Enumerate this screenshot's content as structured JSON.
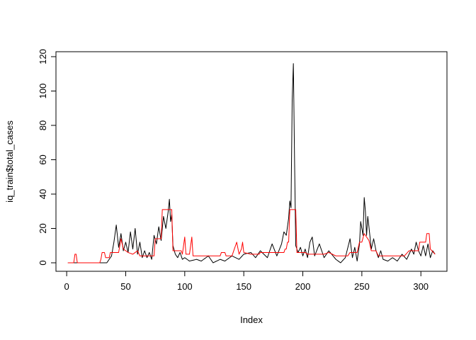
{
  "chart_data": {
    "type": "line",
    "xlabel": "Index",
    "ylabel": "iq_train$total_cases",
    "xlim": [
      1,
      312
    ],
    "ylim": [
      0,
      120
    ],
    "xticks": [
      0,
      50,
      100,
      150,
      200,
      250,
      300
    ],
    "yticks": [
      0,
      20,
      40,
      60,
      80,
      100,
      120
    ],
    "grid": false,
    "series": [
      {
        "color": "#000000",
        "knots": [
          [
            1,
            0
          ],
          [
            10,
            0
          ],
          [
            28,
            0
          ],
          [
            34,
            0
          ],
          [
            38,
            4
          ],
          [
            40,
            12
          ],
          [
            42,
            22
          ],
          [
            44,
            9
          ],
          [
            46,
            17
          ],
          [
            48,
            7
          ],
          [
            50,
            12
          ],
          [
            52,
            6
          ],
          [
            54,
            18
          ],
          [
            56,
            8
          ],
          [
            58,
            20
          ],
          [
            60,
            5
          ],
          [
            62,
            12
          ],
          [
            64,
            3
          ],
          [
            66,
            7
          ],
          [
            68,
            3
          ],
          [
            70,
            6
          ],
          [
            72,
            2
          ],
          [
            74,
            16
          ],
          [
            76,
            11
          ],
          [
            78,
            21
          ],
          [
            80,
            13
          ],
          [
            82,
            27
          ],
          [
            84,
            20
          ],
          [
            86,
            30
          ],
          [
            87,
            37
          ],
          [
            88,
            24
          ],
          [
            89,
            28
          ],
          [
            90,
            10
          ],
          [
            92,
            5
          ],
          [
            94,
            3
          ],
          [
            96,
            6
          ],
          [
            98,
            2
          ],
          [
            100,
            3
          ],
          [
            104,
            1
          ],
          [
            110,
            2
          ],
          [
            114,
            1
          ],
          [
            120,
            4
          ],
          [
            124,
            0
          ],
          [
            130,
            2
          ],
          [
            134,
            1
          ],
          [
            140,
            4
          ],
          [
            146,
            2
          ],
          [
            150,
            5
          ],
          [
            156,
            6
          ],
          [
            160,
            3
          ],
          [
            164,
            7
          ],
          [
            170,
            3
          ],
          [
            174,
            11
          ],
          [
            178,
            4
          ],
          [
            182,
            11
          ],
          [
            184,
            18
          ],
          [
            186,
            16
          ],
          [
            188,
            26
          ],
          [
            189,
            36
          ],
          [
            190,
            32
          ],
          [
            191,
            95
          ],
          [
            192,
            116
          ],
          [
            193,
            60
          ],
          [
            194,
            10
          ],
          [
            196,
            6
          ],
          [
            198,
            9
          ],
          [
            200,
            4
          ],
          [
            202,
            8
          ],
          [
            204,
            3
          ],
          [
            206,
            12
          ],
          [
            208,
            15
          ],
          [
            210,
            4
          ],
          [
            214,
            11
          ],
          [
            218,
            3
          ],
          [
            222,
            7
          ],
          [
            228,
            2
          ],
          [
            232,
            0
          ],
          [
            236,
            3
          ],
          [
            240,
            14
          ],
          [
            242,
            3
          ],
          [
            244,
            9
          ],
          [
            246,
            1
          ],
          [
            248,
            11
          ],
          [
            249,
            24
          ],
          [
            251,
            16
          ],
          [
            252,
            38
          ],
          [
            253,
            30
          ],
          [
            254,
            16
          ],
          [
            255,
            27
          ],
          [
            256,
            21
          ],
          [
            258,
            8
          ],
          [
            260,
            14
          ],
          [
            262,
            7
          ],
          [
            264,
            3
          ],
          [
            266,
            7
          ],
          [
            268,
            2
          ],
          [
            272,
            1
          ],
          [
            276,
            3
          ],
          [
            280,
            1
          ],
          [
            284,
            5
          ],
          [
            288,
            2
          ],
          [
            292,
            8
          ],
          [
            294,
            5
          ],
          [
            296,
            12
          ],
          [
            298,
            7
          ],
          [
            300,
            4
          ],
          [
            302,
            10
          ],
          [
            304,
            4
          ],
          [
            306,
            11
          ],
          [
            308,
            3
          ],
          [
            310,
            7
          ],
          [
            312,
            5
          ]
        ]
      },
      {
        "color": "#ff0000",
        "knots": [
          [
            1,
            0
          ],
          [
            6,
            0
          ],
          [
            7,
            5
          ],
          [
            8,
            5
          ],
          [
            9,
            0
          ],
          [
            28,
            0
          ],
          [
            29,
            2
          ],
          [
            30,
            6
          ],
          [
            32,
            6
          ],
          [
            33,
            3
          ],
          [
            36,
            3
          ],
          [
            37,
            6
          ],
          [
            44,
            6
          ],
          [
            46,
            14
          ],
          [
            48,
            8
          ],
          [
            52,
            6
          ],
          [
            56,
            5
          ],
          [
            60,
            7
          ],
          [
            62,
            4
          ],
          [
            74,
            4
          ],
          [
            75,
            14
          ],
          [
            80,
            14
          ],
          [
            81,
            31
          ],
          [
            89,
            31
          ],
          [
            90,
            7
          ],
          [
            97,
            7
          ],
          [
            98,
            5
          ],
          [
            100,
            15
          ],
          [
            101,
            5
          ],
          [
            104,
            5
          ],
          [
            106,
            15
          ],
          [
            107,
            4
          ],
          [
            130,
            4
          ],
          [
            131,
            6
          ],
          [
            134,
            6
          ],
          [
            135,
            4
          ],
          [
            140,
            4
          ],
          [
            144,
            12
          ],
          [
            146,
            5
          ],
          [
            148,
            8
          ],
          [
            149,
            12
          ],
          [
            150,
            6
          ],
          [
            156,
            5
          ],
          [
            163,
            5
          ],
          [
            164,
            6
          ],
          [
            176,
            6
          ],
          [
            178,
            6
          ],
          [
            184,
            6
          ],
          [
            185,
            8
          ],
          [
            186,
            8
          ],
          [
            187,
            12
          ],
          [
            188,
            12
          ],
          [
            189,
            31
          ],
          [
            194,
            31
          ],
          [
            195,
            6
          ],
          [
            202,
            6
          ],
          [
            204,
            5
          ],
          [
            218,
            5
          ],
          [
            222,
            6
          ],
          [
            228,
            4
          ],
          [
            238,
            4
          ],
          [
            240,
            6
          ],
          [
            246,
            6
          ],
          [
            248,
            12
          ],
          [
            250,
            12
          ],
          [
            252,
            17
          ],
          [
            254,
            15
          ],
          [
            256,
            13
          ],
          [
            258,
            7
          ],
          [
            262,
            7
          ],
          [
            264,
            4
          ],
          [
            286,
            4
          ],
          [
            290,
            7
          ],
          [
            298,
            7
          ],
          [
            299,
            12
          ],
          [
            304,
            12
          ],
          [
            305,
            17
          ],
          [
            307,
            17
          ],
          [
            308,
            8
          ],
          [
            312,
            5
          ]
        ]
      }
    ]
  }
}
